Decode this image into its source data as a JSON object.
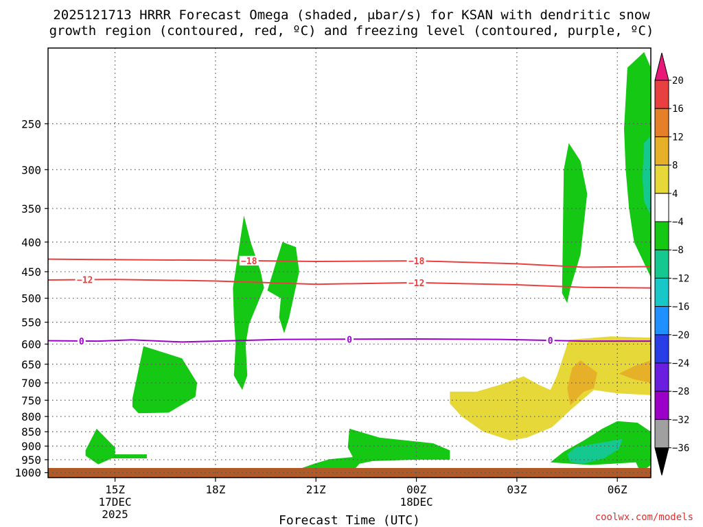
{
  "title": {
    "line1": "2025121713 HRRR Forecast Omega (shaded, μbar/s) for KSAN with dendritic snow",
    "line2": "growth region (contoured, red, ºC) and freezing level (contoured, purple, ºC)"
  },
  "credit": "coolwx.com/models",
  "chart_data": {
    "type": "contour",
    "x_label": "Forecast Time (UTC)",
    "x_unit": "hours from 2025-12-17 13Z",
    "x_range": [
      0,
      18
    ],
    "x_ticks": [
      {
        "x": 2,
        "label": "15Z",
        "sub1": "17DEC",
        "sub2": "2025"
      },
      {
        "x": 5,
        "label": "18Z",
        "sub1": "",
        "sub2": ""
      },
      {
        "x": 8,
        "label": "21Z",
        "sub1": "",
        "sub2": ""
      },
      {
        "x": 11,
        "label": "00Z",
        "sub1": "18DEC",
        "sub2": ""
      },
      {
        "x": 14,
        "label": "03Z",
        "sub1": "",
        "sub2": ""
      },
      {
        "x": 17,
        "label": "06Z",
        "sub1": "",
        "sub2": ""
      }
    ],
    "y_label": "",
    "y_unit": "hPa",
    "y_scale": "log",
    "y_range": [
      1020,
      185
    ],
    "y_ticks": [
      250,
      300,
      350,
      400,
      450,
      500,
      550,
      600,
      650,
      700,
      750,
      800,
      850,
      900,
      950,
      1000
    ],
    "grid": "dotted",
    "colorbar": {
      "levels": [
        -36,
        -32,
        -28,
        -24,
        -20,
        -16,
        -12,
        -8,
        -4,
        4,
        8,
        12,
        16,
        20
      ],
      "labels": [
        "20",
        "16",
        "12",
        "8",
        "4",
        "−4",
        "−8",
        "−12",
        "−16",
        "−20",
        "−24",
        "−28",
        "−32",
        "−36"
      ],
      "colors": [
        "#000000",
        "#a0a0a0",
        "#9a00c8",
        "#6a1ee0",
        "#2a3ee8",
        "#1e90ff",
        "#18c8c8",
        "#14c890",
        "#14c814",
        "#ffffff",
        "#e6d838",
        "#e6b028",
        "#e68028",
        "#e84040",
        "#e81878"
      ]
    },
    "omega_regions": [
      {
        "value": -6,
        "color": "#14c814",
        "points": [
          [
            1.12,
            915
          ],
          [
            1.45,
            840
          ],
          [
            2.0,
            905
          ],
          [
            2.0,
            930
          ],
          [
            2.95,
            930
          ],
          [
            2.95,
            945
          ],
          [
            1.9,
            945
          ],
          [
            1.5,
            968
          ],
          [
            1.12,
            935
          ]
        ]
      },
      {
        "value": -6,
        "color": "#14c814",
        "points": [
          [
            2.52,
            745
          ],
          [
            2.85,
            605
          ],
          [
            4.0,
            635
          ],
          [
            4.45,
            700
          ],
          [
            4.4,
            740
          ],
          [
            3.6,
            788
          ],
          [
            2.7,
            790
          ],
          [
            2.52,
            770
          ]
        ]
      },
      {
        "value": -6,
        "color": "#14c814",
        "points": [
          [
            5.52,
            480
          ],
          [
            5.85,
            360
          ],
          [
            6.05,
            400
          ],
          [
            6.35,
            450
          ],
          [
            6.45,
            480
          ],
          [
            6.0,
            555
          ],
          [
            5.9,
            600
          ],
          [
            5.95,
            680
          ],
          [
            5.8,
            720
          ],
          [
            5.55,
            680
          ],
          [
            5.6,
            600
          ],
          [
            5.55,
            540
          ]
        ]
      },
      {
        "value": -6,
        "color": "#14c814",
        "points": [
          [
            6.55,
            485
          ],
          [
            6.8,
            435
          ],
          [
            7.0,
            400
          ],
          [
            7.4,
            408
          ],
          [
            7.5,
            450
          ],
          [
            7.2,
            540
          ],
          [
            7.05,
            575
          ],
          [
            6.9,
            540
          ],
          [
            6.95,
            500
          ]
        ]
      },
      {
        "value": -6,
        "color": "#14c814",
        "points": [
          [
            7.4,
            990
          ],
          [
            7.95,
            965
          ],
          [
            8.4,
            948
          ],
          [
            9.1,
            940
          ],
          [
            8.95,
            905
          ],
          [
            9.0,
            840
          ],
          [
            9.9,
            870
          ],
          [
            11.5,
            890
          ],
          [
            12.0,
            915
          ],
          [
            12.0,
            950
          ],
          [
            11.0,
            950
          ],
          [
            9.7,
            955
          ],
          [
            9.3,
            965
          ],
          [
            9.0,
            1010
          ],
          [
            7.7,
            1010
          ]
        ]
      },
      {
        "value": -6,
        "color": "#14c814",
        "points": [
          [
            15.0,
            960
          ],
          [
            15.4,
            920
          ],
          [
            16.0,
            880
          ],
          [
            16.55,
            840
          ],
          [
            17.0,
            815
          ],
          [
            17.6,
            820
          ],
          [
            18,
            850
          ],
          [
            18,
            970
          ],
          [
            17.8,
            990
          ],
          [
            17.7,
            1000
          ],
          [
            17.55,
            960
          ],
          [
            16.2,
            970
          ]
        ]
      },
      {
        "value": -9,
        "color": "#14c890",
        "points": [
          [
            15.5,
            930
          ],
          [
            15.75,
            905
          ],
          [
            16.3,
            892
          ],
          [
            17.15,
            875
          ],
          [
            17.05,
            910
          ],
          [
            16.6,
            945
          ],
          [
            16.0,
            965
          ],
          [
            15.6,
            960
          ]
        ]
      },
      {
        "value": -6,
        "color": "#14c814",
        "points": [
          [
            15.35,
            490
          ],
          [
            15.4,
            300
          ],
          [
            15.55,
            270
          ],
          [
            15.9,
            290
          ],
          [
            16.1,
            330
          ],
          [
            15.9,
            420
          ],
          [
            15.6,
            480
          ],
          [
            15.5,
            510
          ]
        ]
      },
      {
        "value": -6,
        "color": "#14c814",
        "points": [
          [
            17.3,
            200
          ],
          [
            17.8,
            188
          ],
          [
            18,
            200
          ],
          [
            18,
            460
          ],
          [
            17.5,
            400
          ],
          [
            17.35,
            350
          ],
          [
            17.25,
            300
          ],
          [
            17.2,
            255
          ]
        ]
      },
      {
        "value": -9,
        "color": "#14c890",
        "points": [
          [
            17.75,
            310
          ],
          [
            17.8,
            270
          ],
          [
            18,
            262
          ],
          [
            18,
            360
          ],
          [
            17.8,
            340
          ]
        ]
      },
      {
        "value": 6,
        "color": "#e6d838",
        "points": [
          [
            12.0,
            725
          ],
          [
            12.8,
            725
          ],
          [
            13.5,
            705
          ],
          [
            14.2,
            682
          ],
          [
            14.65,
            705
          ],
          [
            15.0,
            720
          ],
          [
            15.2,
            680
          ],
          [
            15.55,
            590
          ],
          [
            16.8,
            582
          ],
          [
            18,
            585
          ],
          [
            18,
            735
          ],
          [
            17.0,
            730
          ],
          [
            16.3,
            720
          ],
          [
            15.6,
            780
          ],
          [
            15.05,
            835
          ],
          [
            14.3,
            870
          ],
          [
            13.8,
            880
          ],
          [
            13.0,
            850
          ],
          [
            12.35,
            800
          ],
          [
            12.0,
            760
          ]
        ]
      },
      {
        "value": 10,
        "color": "#e6b028",
        "points": [
          [
            15.5,
            715
          ],
          [
            15.65,
            660
          ],
          [
            15.9,
            640
          ],
          [
            16.4,
            672
          ],
          [
            16.3,
            715
          ],
          [
            16.0,
            725
          ],
          [
            15.6,
            765
          ]
        ]
      },
      {
        "value": 10,
        "color": "#e6b028",
        "points": [
          [
            17.05,
            675
          ],
          [
            17.5,
            655
          ],
          [
            18,
            640
          ],
          [
            18,
            700
          ],
          [
            17.5,
            690
          ]
        ]
      }
    ],
    "temperature_contours": [
      {
        "label": "−18",
        "color": "#e84040",
        "points": [
          [
            0,
            428
          ],
          [
            2,
            429
          ],
          [
            5,
            430
          ],
          [
            8,
            432
          ],
          [
            11,
            431
          ],
          [
            14,
            436
          ],
          [
            16,
            442
          ],
          [
            18,
            441
          ]
        ],
        "label_x": [
          6.0,
          11.0
        ]
      },
      {
        "label": "−12",
        "color": "#e84040",
        "points": [
          [
            0,
            465
          ],
          [
            2,
            464
          ],
          [
            5,
            467
          ],
          [
            8,
            473
          ],
          [
            11,
            470
          ],
          [
            14,
            474
          ],
          [
            16,
            479
          ],
          [
            18,
            480
          ]
        ],
        "label_x": [
          1.1,
          11.0
        ]
      },
      {
        "label": "0",
        "color": "#9a00c8",
        "points": [
          [
            0,
            592
          ],
          [
            1.5,
            593
          ],
          [
            2.5,
            590
          ],
          [
            4,
            595
          ],
          [
            7,
            589
          ],
          [
            11,
            588
          ],
          [
            13.5,
            589
          ],
          [
            16,
            593
          ],
          [
            18,
            593
          ]
        ],
        "label_x": [
          1.0,
          9.0,
          15.0
        ]
      }
    ]
  }
}
